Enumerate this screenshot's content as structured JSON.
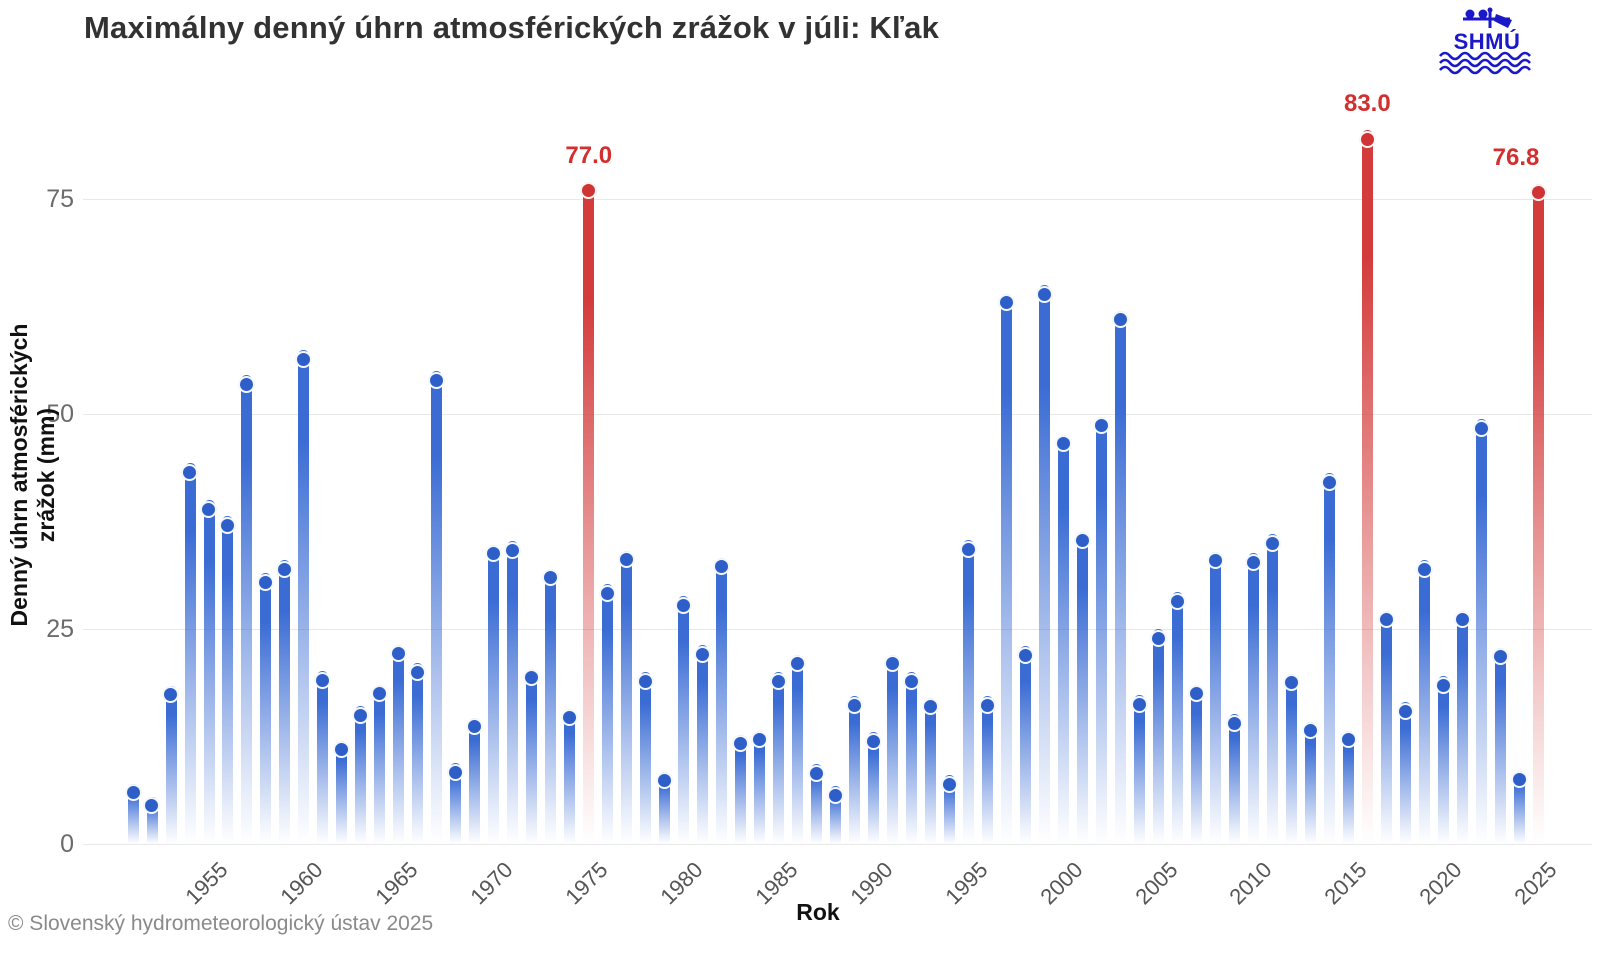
{
  "title": "Maximálny denný úhrn atmosférických zrážok v júli: Kľak",
  "logo": {
    "text": "SHMÚ"
  },
  "copyright": "© Slovenský hydrometeorologický ústav 2025",
  "chart_data": {
    "type": "bar",
    "title": "Maximálny denný úhrn atmosférických zrážok v júli: Kľak",
    "xlabel": "Rok",
    "ylabel": "Denný úhrn atmosférických zrážok (mm)",
    "ylim": [
      0,
      88
    ],
    "yticks": [
      0,
      25,
      50,
      75
    ],
    "xticks": [
      1955,
      1960,
      1965,
      1970,
      1975,
      1980,
      1985,
      1990,
      1995,
      2000,
      2005,
      2010,
      2015,
      2020,
      2025
    ],
    "grid": "horizontal",
    "legend": "none",
    "years": [
      1951,
      1952,
      1953,
      1954,
      1955,
      1956,
      1957,
      1958,
      1959,
      1960,
      1961,
      1962,
      1963,
      1964,
      1965,
      1966,
      1967,
      1968,
      1969,
      1970,
      1971,
      1972,
      1973,
      1974,
      1975,
      1976,
      1977,
      1978,
      1979,
      1980,
      1981,
      1982,
      1983,
      1984,
      1985,
      1986,
      1987,
      1988,
      1989,
      1990,
      1991,
      1992,
      1993,
      1994,
      1995,
      1996,
      1997,
      1998,
      1999,
      2000,
      2001,
      2002,
      2003,
      2004,
      2005,
      2006,
      2007,
      2008,
      2009,
      2010,
      2011,
      2012,
      2013,
      2014,
      2015,
      2016,
      2017,
      2018,
      2019,
      2020,
      2021,
      2022,
      2023,
      2024,
      2025
    ],
    "values": [
      7.0,
      5.5,
      18.4,
      44.3,
      40.0,
      38.1,
      54.5,
      31.5,
      33.0,
      57.4,
      20.1,
      12.0,
      16.0,
      18.5,
      23.2,
      21.0,
      55.0,
      9.4,
      14.7,
      34.8,
      35.2,
      20.4,
      32.0,
      15.7,
      77.0,
      30.2,
      34.1,
      20.0,
      8.4,
      28.8,
      23.1,
      33.3,
      12.7,
      13.2,
      20.0,
      22.0,
      9.3,
      6.7,
      17.2,
      13.0,
      22.0,
      20.0,
      17.0,
      8.0,
      35.3,
      17.2,
      64.0,
      23.0,
      65.0,
      47.6,
      36.3,
      49.7,
      62.0,
      17.3,
      25.0,
      29.3,
      18.5,
      34.0,
      15.1,
      33.8,
      36.0,
      19.8,
      14.2,
      43.1,
      13.2,
      83.0,
      27.1,
      16.5,
      33.0,
      19.5,
      27.1,
      49.4,
      22.8,
      8.5,
      76.8
    ],
    "highlight_years": [
      1975,
      2016,
      2025
    ],
    "annotations": [
      {
        "year": 1975,
        "label": "77.0"
      },
      {
        "year": 2016,
        "label": "83.0"
      },
      {
        "year": 2025,
        "label": "76.8"
      }
    ],
    "colors": {
      "bar": "#3a6cd4",
      "bar_dot": "#2e5fc9",
      "highlight": "#d43c3c",
      "highlight_dot": "#cf3333",
      "annotation_text": "#d32f2f",
      "logo_blue": "#1a18c8"
    }
  }
}
